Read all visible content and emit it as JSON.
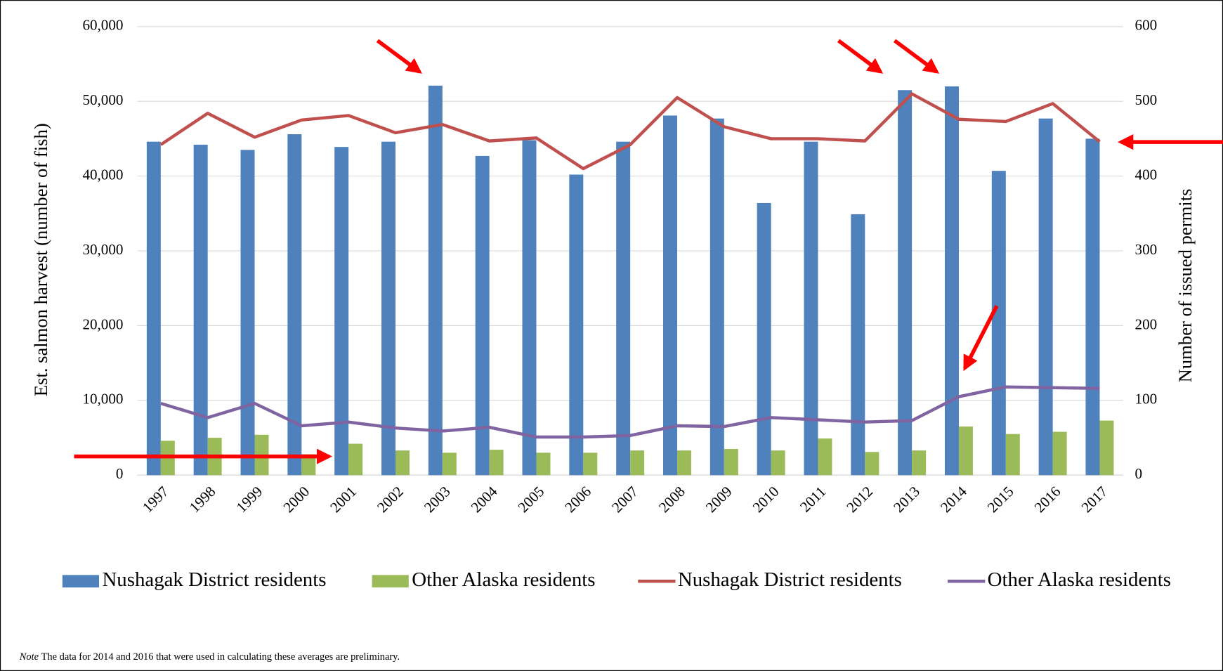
{
  "chart_data": {
    "type": "combo",
    "categories": [
      "1997",
      "1998",
      "1999",
      "2000",
      "2001",
      "2002",
      "2003",
      "2004",
      "2005",
      "2006",
      "2007",
      "2008",
      "2009",
      "2010",
      "2011",
      "2012",
      "2013",
      "2014",
      "2015",
      "2016",
      "2017"
    ],
    "y_label": "Est. salmon harvest (number of fish)",
    "y2_label": "Number of issued permits",
    "ylim": [
      0,
      60000
    ],
    "yticks": [
      0,
      {
        "value": 10000,
        "label": "10,000"
      },
      {
        "value": 20000,
        "label": "20,000"
      },
      {
        "value": 30000,
        "label": "30,000"
      },
      {
        "value": 40000,
        "label": "40,000"
      },
      {
        "value": 50000,
        "label": "50,000"
      },
      {
        "value": 60000,
        "label": "60,000"
      }
    ],
    "y2lim": [
      0,
      600
    ],
    "y2ticks": [
      0,
      100,
      200,
      300,
      400,
      500,
      600
    ],
    "grid": true,
    "series": [
      {
        "name": "Nushagak District residents",
        "type": "bar",
        "color": "#4f81bd",
        "values": [
          44600,
          44200,
          43500,
          45600,
          43900,
          44600,
          52100,
          42700,
          44800,
          40200,
          44600,
          48100,
          47700,
          36400,
          44600,
          34900,
          51500,
          52000,
          40700,
          47700,
          45000
        ]
      },
      {
        "name": "Other Alaska residents",
        "type": "bar",
        "color": "#9bbb59",
        "values": [
          4600,
          5000,
          5400,
          2800,
          4200,
          3300,
          3000,
          3400,
          3000,
          3000,
          3300,
          3300,
          3500,
          3300,
          4900,
          3100,
          3300,
          6500,
          5500,
          5800,
          7300
        ]
      },
      {
        "name": "Nushagak District residents",
        "type": "line",
        "axis": "y2",
        "color": "#c0504d",
        "values": [
          442,
          484,
          452,
          475,
          481,
          458,
          469,
          447,
          451,
          410,
          442,
          505,
          466,
          450,
          450,
          447,
          510,
          476,
          473,
          497,
          446
        ]
      },
      {
        "name": "Other Alaska residents",
        "type": "line",
        "axis": "y2",
        "color": "#8064a2",
        "values": [
          96,
          77,
          96,
          66,
          71,
          63,
          59,
          64,
          51,
          51,
          53,
          66,
          65,
          77,
          74,
          71,
          73,
          105,
          118,
          117,
          116
        ]
      }
    ],
    "note_label": "Note",
    "note": "The data for 2014 and 2016 that were used in calculating these averages are preliminary."
  }
}
